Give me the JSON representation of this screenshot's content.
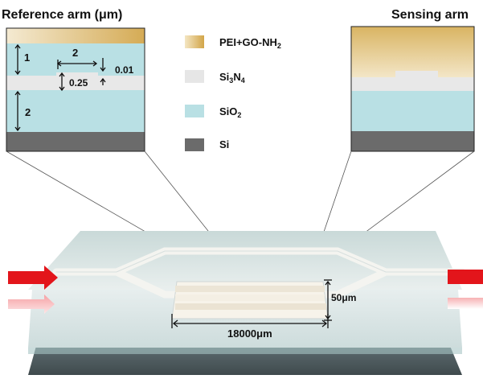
{
  "titles": {
    "reference_arm": "Reference arm (μm)",
    "sensing_arm": "Sensing arm"
  },
  "reference_dims": {
    "d_top_cladding": "1",
    "d_rib_width": "2",
    "d_rib_height": "0.01",
    "d_core": "0.25",
    "d_bottom_oxide": "2"
  },
  "legend": [
    {
      "label": "PEI+GO-NH",
      "sub": "2",
      "label2": "",
      "sub2": "",
      "color": "#d8b46a"
    },
    {
      "label": "Si",
      "sub": "3",
      "label2": "N",
      "sub2": "4",
      "color": "#e6e6e6"
    },
    {
      "label": "SiO",
      "sub": "2",
      "label2": "",
      "sub2": "",
      "color": "#b9e0e4"
    },
    {
      "label": "Si",
      "sub": "",
      "label2": "",
      "sub2": "",
      "color": "#6b6b6b"
    }
  ],
  "device_dims": {
    "length": "18000μm",
    "width": "50μm"
  },
  "colors": {
    "pei_go": "#d8b46a",
    "si3n4": "#e6e6e6",
    "sio2": "#b9e0e4",
    "si": "#6b6b6b",
    "arrow": "#e3151b"
  }
}
